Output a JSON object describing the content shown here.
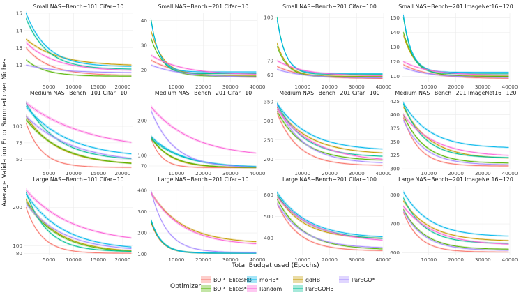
{
  "figure": {
    "xlabel": "Total Budget used (Epochs)",
    "ylabel": "Average Validation Error Summed over Niches",
    "legend_title": "Optimizer"
  },
  "optimizers": [
    {
      "name": "BOP−ElitesHB",
      "color": "#F8766D"
    },
    {
      "name": "qdHB",
      "color": "#C49A00"
    },
    {
      "name": "BOP−Elites*",
      "color": "#53B400"
    },
    {
      "name": "ParEGOHB",
      "color": "#00C094"
    },
    {
      "name": "moHB*",
      "color": "#00B6EB"
    },
    {
      "name": "ParEGO*",
      "color": "#A58AFF"
    },
    {
      "name": "Random",
      "color": "#FB61D7"
    }
  ],
  "legend_order": [
    0,
    2,
    4,
    6,
    1,
    3,
    5
  ],
  "chart_data": [
    {
      "type": "line",
      "title": "Small NAS−Bench−101 Cifar−10",
      "xlim": [
        0,
        22000
      ],
      "ylim": [
        11.0,
        15.0
      ],
      "xticks": [
        5000,
        10000,
        15000,
        20000
      ],
      "yticks": [
        12,
        13,
        14,
        15
      ],
      "start": [
        13.0,
        13.5,
        12.3,
        14.7,
        15.0,
        12.0,
        13.3
      ],
      "end": [
        11.4,
        11.95,
        11.35,
        11.75,
        11.9,
        11.55,
        11.65
      ],
      "decay": [
        0.22,
        0.3,
        0.18,
        0.2,
        0.2,
        0.3,
        0.28
      ]
    },
    {
      "type": "line",
      "title": "Small NAS−Bench−201 Cifar−10",
      "xlim": [
        0,
        40000
      ],
      "ylim": [
        15,
        43
      ],
      "xticks": [
        10000,
        20000,
        30000,
        40000
      ],
      "yticks": [
        20,
        30,
        40
      ],
      "start": [
        24,
        36,
        33,
        41,
        40,
        22,
        26
      ],
      "end": [
        16.8,
        17.8,
        17.4,
        18.5,
        19.2,
        17.0,
        18.0
      ],
      "decay": [
        0.3,
        0.12,
        0.12,
        0.08,
        0.08,
        0.3,
        0.3
      ]
    },
    {
      "type": "line",
      "title": "Small NAS−Bench−201 Cifar−100",
      "xlim": [
        0,
        40000
      ],
      "ylim": [
        55,
        103
      ],
      "xticks": [
        10000,
        20000,
        30000,
        40000
      ],
      "yticks": [
        60,
        70,
        100
      ],
      "start": [
        66,
        82,
        80,
        100,
        98,
        64,
        70
      ],
      "end": [
        57.5,
        59.2,
        58.8,
        60.5,
        61.2,
        58.0,
        59.5
      ],
      "decay": [
        0.25,
        0.1,
        0.1,
        0.08,
        0.08,
        0.25,
        0.25
      ]
    },
    {
      "type": "line",
      "title": "Small NAS−Bench−201 ImageNet16−120",
      "xlim": [
        0,
        40000
      ],
      "ylim": [
        106,
        153
      ],
      "xticks": [
        10000,
        20000,
        30000,
        40000
      ],
      "yticks": [
        110,
        120,
        130,
        140,
        150
      ],
      "start": [
        118,
        138,
        140,
        150,
        152,
        116,
        120
      ],
      "end": [
        108.5,
        110.2,
        110.0,
        111.8,
        112.8,
        109.2,
        110.8
      ],
      "decay": [
        0.25,
        0.12,
        0.12,
        0.08,
        0.08,
        0.25,
        0.25
      ]
    },
    {
      "type": "line",
      "title": "Medium NAS−Bench−101 Cifar−10",
      "xlim": [
        0,
        22000
      ],
      "ylim": [
        36,
        140
      ],
      "xticks": [
        5000,
        10000,
        15000,
        20000
      ],
      "yticks": [
        50,
        75,
        100
      ],
      "start": [
        105,
        115,
        110,
        135,
        130,
        115,
        135
      ],
      "end": [
        38,
        42,
        40,
        48,
        52,
        44,
        62
      ],
      "decay": [
        0.15,
        0.3,
        0.35,
        0.3,
        0.4,
        0.45,
        0.6
      ]
    },
    {
      "type": "line",
      "title": "Medium NAS−Bench−201 Cifar−10",
      "xlim": [
        0,
        40000
      ],
      "ylim": [
        62,
        260
      ],
      "xticks": [
        10000,
        20000,
        30000,
        40000
      ],
      "yticks": [
        70,
        100,
        200
      ],
      "start": [
        150,
        155,
        150,
        150,
        155,
        230,
        240
      ],
      "end": [
        65,
        65,
        65,
        65,
        65,
        65,
        95
      ],
      "decay": [
        0.1,
        0.18,
        0.2,
        0.3,
        0.3,
        0.22,
        0.4
      ]
    },
    {
      "type": "line",
      "title": "Medium NAS−Bench−201 Cifar−100",
      "xlim": [
        0,
        40000
      ],
      "ylim": [
        175,
        355
      ],
      "xticks": [
        10000,
        20000,
        30000,
        40000
      ],
      "yticks": [
        200,
        250,
        300,
        350
      ],
      "start": [
        320,
        335,
        325,
        345,
        345,
        340,
        330
      ],
      "end": [
        183,
        212,
        195,
        205,
        222,
        188,
        192
      ],
      "decay": [
        0.2,
        0.3,
        0.25,
        0.25,
        0.3,
        0.25,
        0.35
      ]
    },
    {
      "type": "line",
      "title": "Medium NAS−Bench−201 ImageNet16−120",
      "xlim": [
        0,
        40000
      ],
      "ylim": [
        300,
        428
      ],
      "xticks": [
        10000,
        20000,
        30000,
        40000
      ],
      "yticks": [
        300,
        325,
        350,
        375,
        400,
        425
      ],
      "start": [
        395,
        415,
        400,
        420,
        422,
        390,
        400
      ],
      "end": [
        305,
        318,
        310,
        320,
        338,
        307,
        322
      ],
      "decay": [
        0.15,
        0.25,
        0.2,
        0.2,
        0.25,
        0.2,
        0.3
      ]
    },
    {
      "type": "line",
      "title": "Large NAS−Bench−101 Cifar−10",
      "xlim": [
        0,
        22000
      ],
      "ylim": [
        75,
        255
      ],
      "xticks": [
        5000,
        10000,
        15000,
        20000
      ],
      "yticks": [
        80,
        100,
        200
      ],
      "start": [
        200,
        220,
        215,
        240,
        235,
        210,
        245
      ],
      "end": [
        80,
        82,
        80,
        84,
        88,
        85,
        105
      ],
      "decay": [
        0.15,
        0.3,
        0.3,
        0.2,
        0.35,
        0.35,
        0.45
      ]
    },
    {
      "type": "line",
      "title": "Large NAS−Bench−201 Cifar−10",
      "xlim": [
        0,
        40000
      ],
      "ylim": [
        95,
        420
      ],
      "xticks": [
        10000,
        20000,
        30000,
        40000
      ],
      "yticks": [
        100,
        200,
        300,
        400
      ],
      "start": [
        250,
        390,
        255,
        265,
        262,
        400,
        390
      ],
      "end": [
        105,
        150,
        105,
        105,
        105,
        108,
        140
      ],
      "decay": [
        0.1,
        0.3,
        0.1,
        0.1,
        0.1,
        0.15,
        0.3
      ]
    },
    {
      "type": "line",
      "title": "Large NAS−Bench−201 Cifar−100",
      "xlim": [
        0,
        40000
      ],
      "ylim": [
        320,
        640
      ],
      "xticks": [
        10000,
        20000,
        30000,
        40000
      ],
      "yticks": [
        400,
        500,
        600
      ],
      "start": [
        560,
        600,
        580,
        600,
        610,
        560,
        590
      ],
      "end": [
        340,
        395,
        345,
        390,
        398,
        352,
        378
      ],
      "decay": [
        0.2,
        0.25,
        0.25,
        0.3,
        0.3,
        0.25,
        0.35
      ]
    },
    {
      "type": "line",
      "title": "Large NAS−Bench−201 ImageNet16−120",
      "xlim": [
        0,
        40000
      ],
      "ylim": [
        592,
        830
      ],
      "xticks": [
        10000,
        20000,
        30000,
        40000
      ],
      "yticks": [
        600,
        700,
        800
      ],
      "start": [
        740,
        780,
        750,
        790,
        810,
        745,
        760
      ],
      "end": [
        603,
        640,
        612,
        632,
        655,
        608,
        625
      ],
      "decay": [
        0.15,
        0.25,
        0.2,
        0.2,
        0.25,
        0.2,
        0.3
      ]
    }
  ]
}
